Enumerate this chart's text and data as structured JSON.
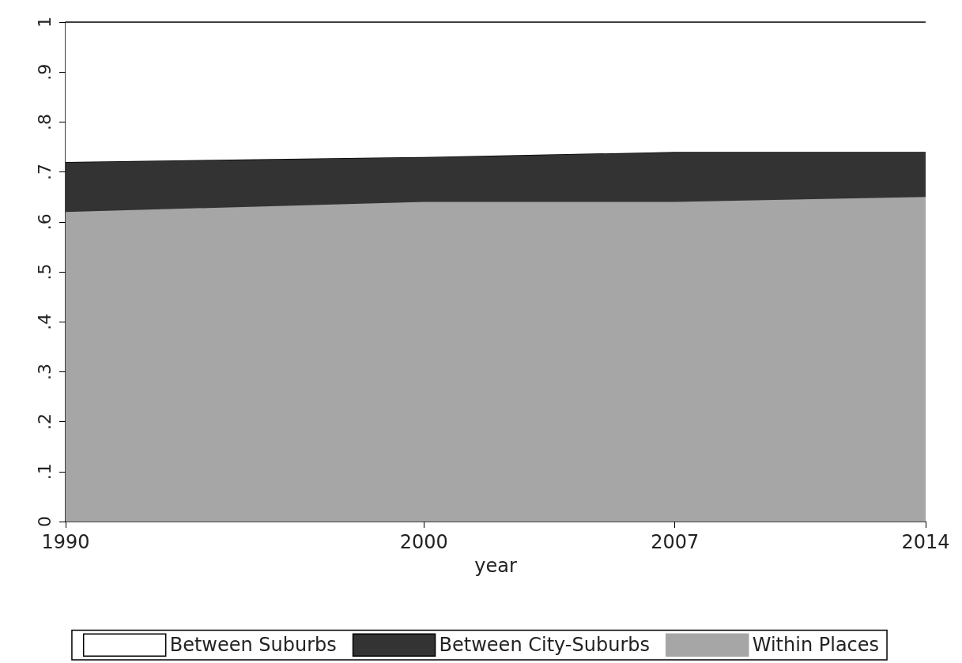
{
  "chart_data": {
    "type": "area",
    "xlabel": "year",
    "stacked": true,
    "legend": "bottom",
    "grid": false,
    "x": [
      1990,
      2000,
      2007,
      2014
    ],
    "series": [
      {
        "name": "Within Places",
        "color": "#a6a6a6",
        "values": [
          0.62,
          0.64,
          0.64,
          0.65
        ]
      },
      {
        "name": "Between City-Suburbs",
        "color": "#333333",
        "values": [
          0.1,
          0.09,
          0.1,
          0.09
        ]
      },
      {
        "name": "Between Suburbs",
        "color": "#ffffff",
        "values": [
          0.28,
          0.27,
          0.26,
          0.26
        ]
      }
    ],
    "xlim": [
      1990,
      2014
    ],
    "xticks": [
      1990,
      2000,
      2007,
      2014
    ],
    "ylim": [
      0,
      1
    ],
    "yticks": [
      0,
      {
        "value": 0.1,
        "label": ".1"
      },
      {
        "value": 0.2,
        "label": ".2"
      },
      {
        "value": 0.3,
        "label": ".3"
      },
      {
        "value": 0.4,
        "label": ".4"
      },
      {
        "value": 0.5,
        "label": ".5"
      },
      {
        "value": 0.6,
        "label": ".6"
      },
      {
        "value": 0.7,
        "label": ".7"
      },
      {
        "value": 0.8,
        "label": ".8"
      },
      {
        "value": 0.9,
        "label": ".9"
      },
      1
    ]
  }
}
